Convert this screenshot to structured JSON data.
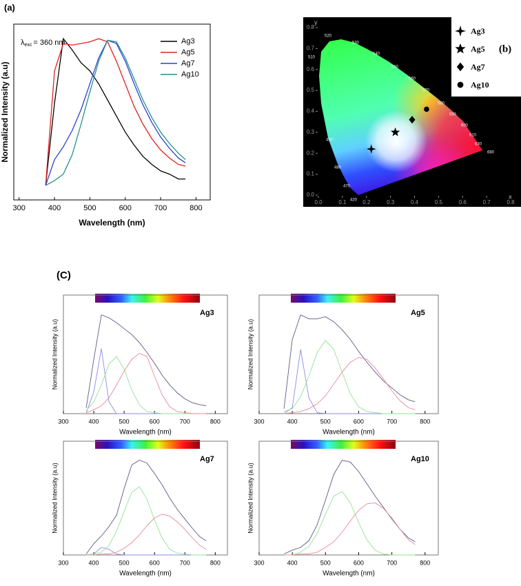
{
  "chart_data": [
    {
      "type": "line",
      "panel_label": "(a)",
      "annotation": {
        "symbol": "λ",
        "subscript": "exc",
        "text": "= 360 nm"
      },
      "x_label": "Wavelength (nm)",
      "y_label": "Normalized Intensity (a.u)",
      "x": [
        375,
        400,
        425,
        450,
        475,
        500,
        525,
        550,
        575,
        600,
        625,
        650,
        675,
        700,
        725,
        750,
        770
      ],
      "xlim": [
        285,
        840
      ],
      "xticks": [
        300,
        400,
        500,
        600,
        700,
        800
      ],
      "ylim": [
        0,
        1.09
      ],
      "legend": "upper right",
      "series": [
        {
          "name": "Ag3",
          "color": "#000000",
          "values": [
            0.09,
            0.6,
            1.0,
            0.93,
            0.85,
            0.8,
            0.72,
            0.62,
            0.52,
            0.42,
            0.34,
            0.27,
            0.22,
            0.18,
            0.16,
            0.13,
            0.13
          ]
        },
        {
          "name": "Ag5",
          "color": "#e32020",
          "values": [
            0.09,
            0.8,
            0.97,
            0.96,
            0.97,
            0.98,
            1.0,
            0.98,
            0.86,
            0.72,
            0.58,
            0.47,
            0.38,
            0.31,
            0.26,
            0.22,
            0.21
          ]
        },
        {
          "name": "Ag7",
          "color": "#2840d0",
          "values": [
            0.09,
            0.25,
            0.33,
            0.43,
            0.56,
            0.72,
            0.88,
            0.99,
            0.97,
            0.86,
            0.72,
            0.59,
            0.48,
            0.39,
            0.32,
            0.26,
            0.23
          ]
        },
        {
          "name": "Ag10",
          "color": "#23918a",
          "values": [
            0.09,
            0.12,
            0.16,
            0.28,
            0.47,
            0.67,
            0.86,
            0.99,
            0.98,
            0.88,
            0.75,
            0.62,
            0.51,
            0.42,
            0.35,
            0.29,
            0.25
          ]
        }
      ]
    },
    {
      "type": "cie",
      "panel_label": "(b)",
      "x_label": "x",
      "y_label": "y",
      "xlim": [
        0,
        0.8
      ],
      "ylim": [
        0,
        0.8
      ],
      "xticks": [
        {
          "value": 0,
          "label": "0.0"
        },
        {
          "value": 0.1,
          "label": "0.1"
        },
        {
          "value": 0.2,
          "label": "0.2"
        },
        {
          "value": 0.3,
          "label": "0.3"
        },
        {
          "value": 0.4,
          "label": "0.4"
        },
        {
          "value": 0.5,
          "label": "0.5"
        },
        {
          "value": 0.6,
          "label": "0.6"
        },
        {
          "value": 0.7,
          "label": "0.7"
        },
        {
          "value": 0.8,
          "label": "0.8"
        }
      ],
      "yticks": [
        {
          "value": 0,
          "label": "0.0"
        },
        {
          "value": 0.1,
          "label": "0.1"
        },
        {
          "value": 0.2,
          "label": "0.2"
        },
        {
          "value": 0.3,
          "label": "0.3"
        },
        {
          "value": 0.4,
          "label": "0.4"
        },
        {
          "value": 0.5,
          "label": "0.5"
        },
        {
          "value": 0.6,
          "label": "0.6"
        },
        {
          "value": 0.7,
          "label": "0.7"
        },
        {
          "value": 0.8,
          "label": "0.8"
        }
      ],
      "locus_labels": [
        420,
        470,
        480,
        490,
        510,
        520,
        530,
        540,
        550,
        560,
        570,
        580,
        590,
        600,
        610,
        630,
        680
      ],
      "series": [
        {
          "name": "Ag3",
          "marker": "star4",
          "x": 0.22,
          "y": 0.22
        },
        {
          "name": "Ag5",
          "marker": "star5",
          "x": 0.32,
          "y": 0.3
        },
        {
          "name": "Ag7",
          "marker": "diamond",
          "x": 0.39,
          "y": 0.36
        },
        {
          "name": "Ag10",
          "marker": "circle",
          "x": 0.45,
          "y": 0.41
        }
      ]
    },
    {
      "type": "line",
      "panel_label": "(C)",
      "sample_label": "Ag3",
      "x_label": "Wavelength (nm)",
      "y_label": "Normalized Intensity (a.u)",
      "x": [
        375,
        400,
        425,
        450,
        475,
        500,
        525,
        550,
        575,
        600,
        625,
        650,
        675,
        700,
        725,
        750,
        770
      ],
      "xlim": [
        300,
        840
      ],
      "xticks": [
        300,
        400,
        500,
        600,
        700,
        800
      ],
      "ylim": [
        0,
        1.2
      ],
      "series": [
        {
          "color": "#5a5a86",
          "values": [
            0.06,
            0.55,
            1.0,
            0.97,
            0.92,
            0.86,
            0.8,
            0.72,
            0.62,
            0.51,
            0.39,
            0.29,
            0.21,
            0.15,
            0.11,
            0.09,
            0.08
          ]
        },
        {
          "color": "#8a8ae6",
          "values": [
            0.01,
            0.22,
            0.66,
            0.12,
            0,
            0,
            0,
            0,
            0,
            0,
            0,
            0,
            0,
            0,
            0,
            0,
            0
          ]
        },
        {
          "color": "#92e392",
          "values": [
            0.03,
            0.12,
            0.29,
            0.5,
            0.58,
            0.45,
            0.24,
            0.09,
            0.02,
            0.01,
            0,
            0,
            0,
            0,
            0,
            0,
            0
          ]
        },
        {
          "color": "#e8889a",
          "values": [
            0.01,
            0.04,
            0.08,
            0.16,
            0.29,
            0.43,
            0.55,
            0.61,
            0.58,
            0.38,
            0.19,
            0.07,
            0.02,
            0.01,
            0,
            0,
            0
          ]
        }
      ]
    },
    {
      "type": "line",
      "sample_label": "Ag5",
      "x_label": "Wavelength (nm)",
      "y_label": "Normalized Intensity (a.u)",
      "x": [
        375,
        400,
        425,
        450,
        475,
        500,
        525,
        550,
        575,
        600,
        625,
        650,
        675,
        700,
        725,
        750,
        770
      ],
      "xlim": [
        300,
        840
      ],
      "xticks": [
        300,
        400,
        500,
        600,
        700,
        800
      ],
      "ylim": [
        0,
        1.2
      ],
      "series": [
        {
          "color": "#5a5a86",
          "values": [
            0.05,
            0.75,
            1.0,
            0.96,
            0.96,
            0.98,
            0.93,
            0.85,
            0.75,
            0.63,
            0.52,
            0.42,
            0.33,
            0.26,
            0.19,
            0.14,
            0.12
          ]
        },
        {
          "color": "#8a8ae6",
          "values": [
            0,
            0.06,
            0.65,
            0.16,
            0.01,
            0,
            0,
            0,
            0,
            0,
            0,
            0,
            0,
            0,
            0,
            0,
            0
          ]
        },
        {
          "color": "#92e392",
          "values": [
            0.02,
            0.05,
            0.17,
            0.38,
            0.62,
            0.74,
            0.65,
            0.42,
            0.2,
            0.07,
            0.02,
            0.01,
            0,
            0,
            0,
            0,
            0
          ]
        },
        {
          "color": "#e8889a",
          "values": [
            0,
            0.01,
            0.02,
            0.05,
            0.1,
            0.18,
            0.3,
            0.42,
            0.52,
            0.57,
            0.55,
            0.46,
            0.35,
            0.23,
            0.13,
            0.06,
            0.04
          ]
        }
      ]
    },
    {
      "type": "line",
      "sample_label": "Ag7",
      "x_label": "Wavelength (nm)",
      "y_label": "Normalized Intensity (a.u)",
      "x": [
        375,
        400,
        425,
        450,
        475,
        500,
        525,
        550,
        575,
        600,
        625,
        650,
        675,
        700,
        725,
        750,
        770
      ],
      "xlim": [
        300,
        840
      ],
      "xticks": [
        300,
        400,
        500,
        600,
        700,
        800
      ],
      "ylim": [
        0,
        1.2
      ],
      "series": [
        {
          "color": "#5a5a86",
          "values": [
            0.01,
            0.12,
            0.2,
            0.3,
            0.42,
            0.7,
            0.95,
            1.0,
            0.97,
            0.86,
            0.74,
            0.6,
            0.48,
            0.38,
            0.28,
            0.19,
            0.15
          ]
        },
        {
          "color": "#8a8ae6",
          "values": [
            0,
            0.01,
            0.08,
            0.06,
            0.01,
            0,
            0,
            0,
            0,
            0,
            0,
            0,
            0,
            0,
            0,
            0,
            0
          ]
        },
        {
          "color": "#92e392",
          "values": [
            0,
            0.01,
            0.03,
            0.1,
            0.25,
            0.46,
            0.66,
            0.72,
            0.59,
            0.37,
            0.18,
            0.06,
            0.02,
            0.01,
            0,
            0,
            0
          ]
        },
        {
          "color": "#e8889a",
          "values": [
            0,
            0,
            0.01,
            0.01,
            0.03,
            0.07,
            0.13,
            0.21,
            0.31,
            0.39,
            0.43,
            0.41,
            0.35,
            0.27,
            0.18,
            0.1,
            0.06
          ]
        }
      ]
    },
    {
      "type": "line",
      "sample_label": "Ag10",
      "x_label": "Wavelength (nm)",
      "y_label": "Normalized Intensity (a.u)",
      "x": [
        375,
        400,
        425,
        450,
        475,
        500,
        525,
        550,
        575,
        600,
        625,
        650,
        675,
        700,
        725,
        750,
        770
      ],
      "xlim": [
        300,
        840
      ],
      "xticks": [
        300,
        400,
        500,
        600,
        700,
        800
      ],
      "ylim": [
        0,
        1.2
      ],
      "series": [
        {
          "color": "#5a5a86",
          "values": [
            0.01,
            0.05,
            0.08,
            0.15,
            0.32,
            0.58,
            0.85,
            1.0,
            0.98,
            0.88,
            0.75,
            0.62,
            0.5,
            0.38,
            0.27,
            0.18,
            0.14
          ]
        },
        {
          "color": "#92e392",
          "values": [
            0,
            0,
            0.03,
            0.09,
            0.23,
            0.43,
            0.62,
            0.67,
            0.55,
            0.34,
            0.16,
            0.05,
            0.01,
            0,
            0,
            0,
            0
          ]
        },
        {
          "color": "#e8889a",
          "values": [
            0,
            0,
            0.01,
            0.01,
            0.03,
            0.08,
            0.14,
            0.24,
            0.36,
            0.47,
            0.54,
            0.55,
            0.49,
            0.39,
            0.27,
            0.16,
            0.11
          ]
        }
      ]
    }
  ]
}
